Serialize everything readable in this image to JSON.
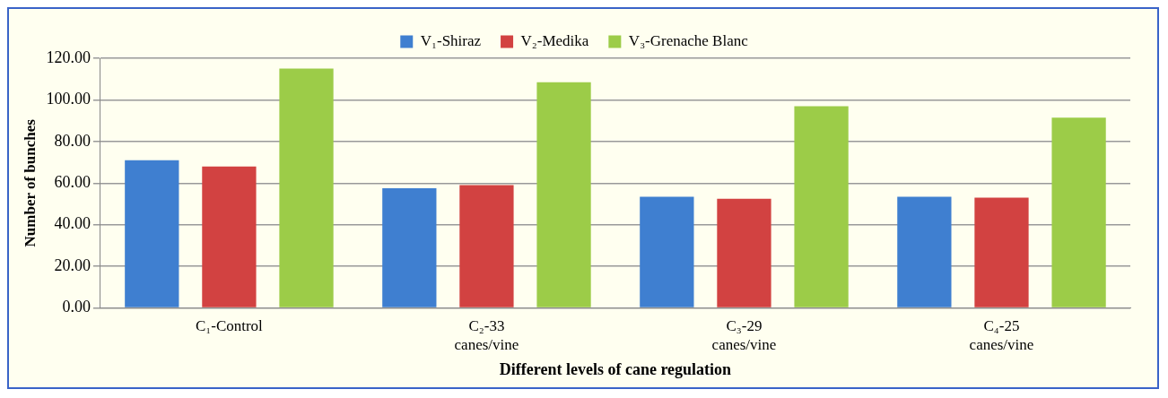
{
  "chart_data": {
    "type": "bar",
    "xlabel": "Different levels of cane regulation",
    "ylabel": "Number of bunches",
    "categories": [
      "C₁-Control",
      "C₂-33 canes/vine",
      "C₃-29 canes/vine",
      "C₄-25 canes/vine"
    ],
    "series": [
      {
        "name": "V₁-Shiraz",
        "color": "#3f7fd0",
        "values": [
          71,
          57.5,
          53.5,
          53.5
        ]
      },
      {
        "name": "V₂-Medika",
        "color": "#d24241",
        "values": [
          68,
          59,
          52.5,
          53
        ]
      },
      {
        "name": "V₃-Grenache Blanc",
        "color": "#9ccc48",
        "values": [
          115,
          108.5,
          97,
          91.5
        ]
      }
    ],
    "ylim": [
      0,
      120
    ],
    "yticks": [
      {
        "value": 0,
        "label": "0.00"
      },
      {
        "value": 20,
        "label": "20.00"
      },
      {
        "value": 40,
        "label": "40.00"
      },
      {
        "value": 60,
        "label": "60.00"
      },
      {
        "value": 80,
        "label": "80.00"
      },
      {
        "value": 100,
        "label": "100.00"
      },
      {
        "value": 120,
        "label": "120.00"
      }
    ],
    "grid": "y",
    "legend": "top"
  }
}
